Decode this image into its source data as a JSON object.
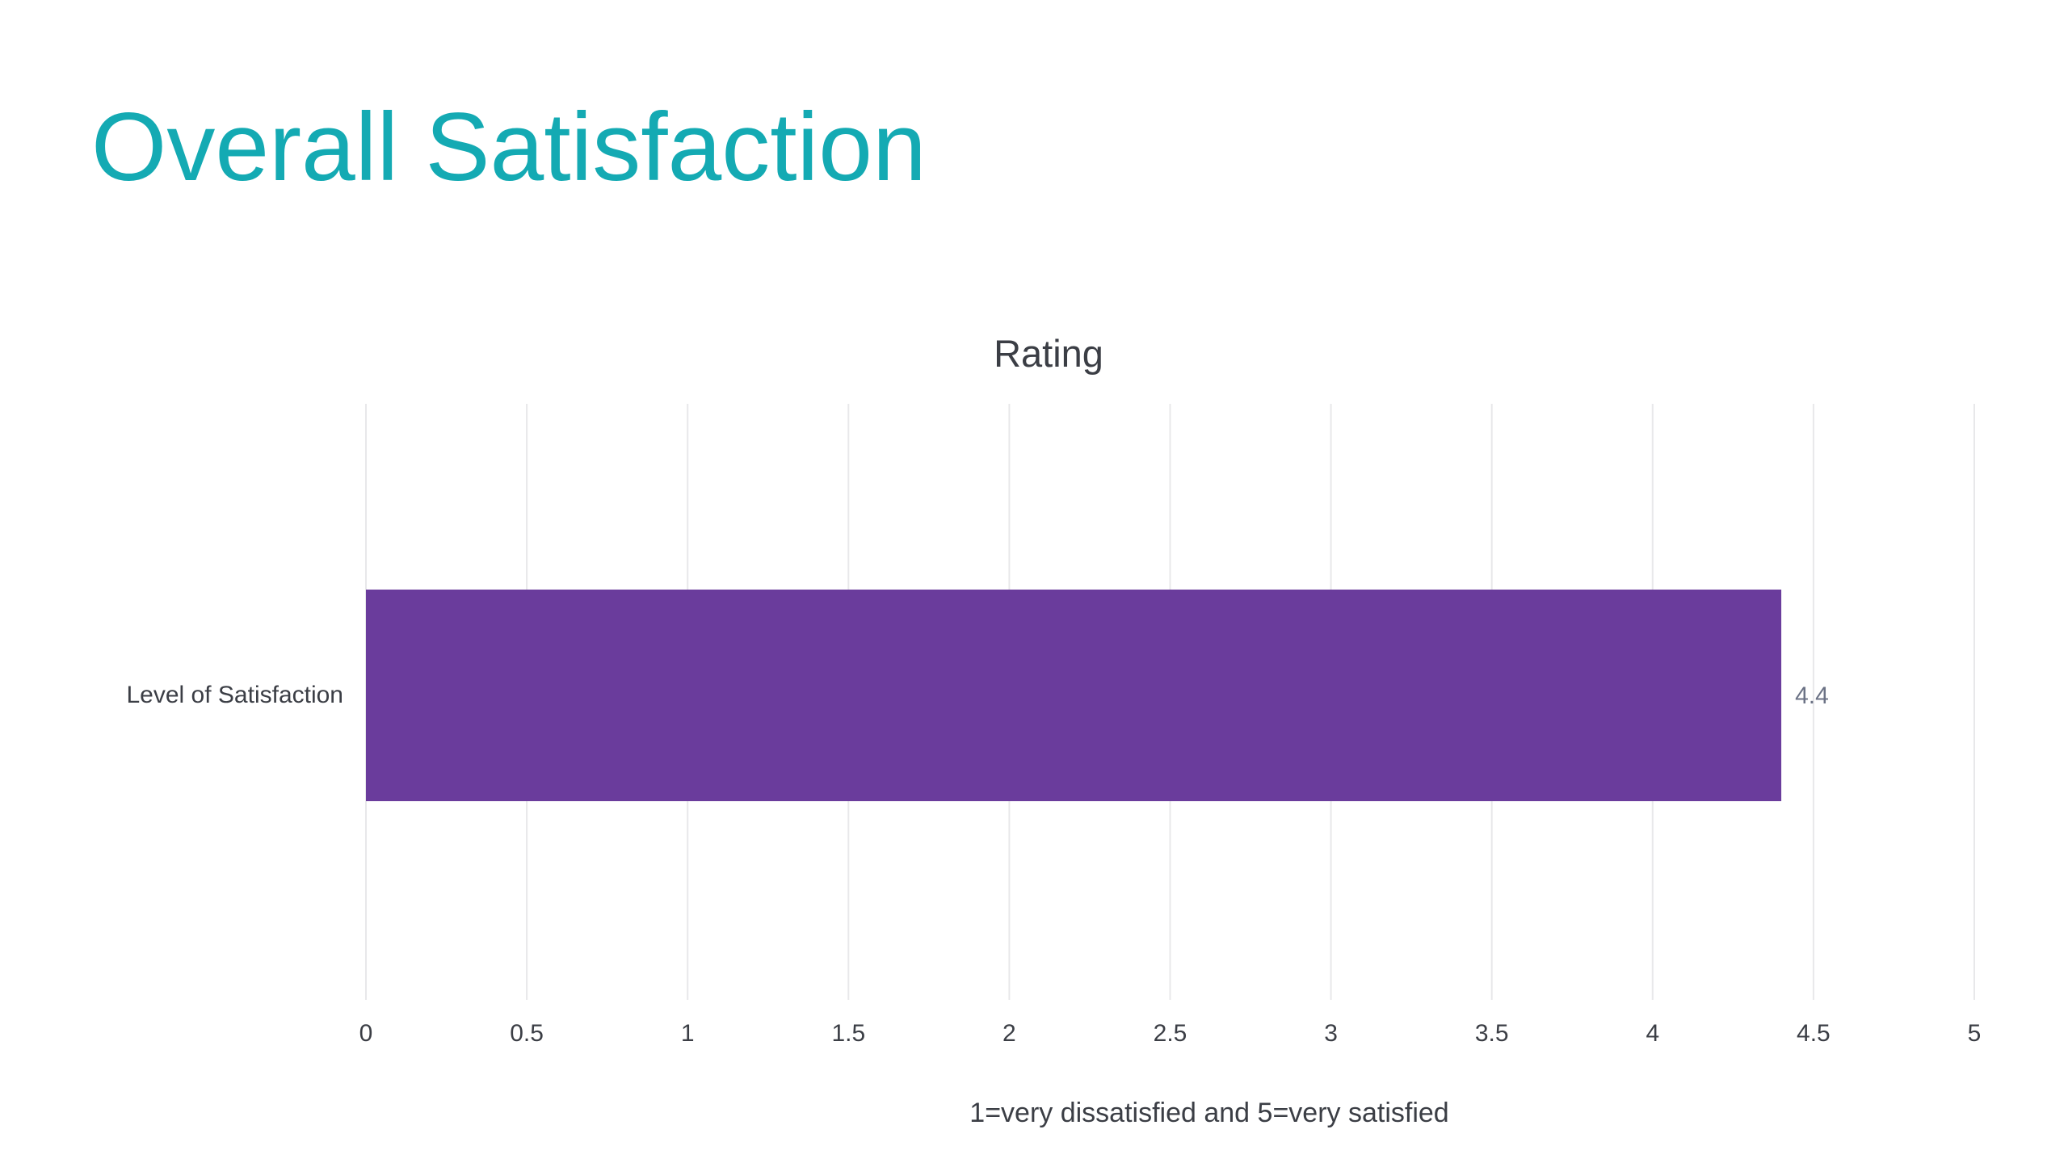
{
  "slide": {
    "title": "Overall Satisfaction"
  },
  "colors": {
    "title": "#14aab3",
    "bar": "#6a3c9c",
    "text": "#3b3e45",
    "data_label": "#6b7285",
    "grid": "#e8e8ea"
  },
  "chart_data": {
    "type": "bar",
    "orientation": "horizontal",
    "title": "Rating",
    "categories": [
      "Level of Satisfaction"
    ],
    "values": [
      4.4
    ],
    "data_labels": [
      "4.4"
    ],
    "xlabel": "1=very dissatisfied and 5=very satisfied",
    "ylabel": "",
    "xlim": [
      0,
      5
    ],
    "xticks": [
      "0",
      "0.5",
      "1",
      "1.5",
      "2",
      "2.5",
      "3",
      "3.5",
      "4",
      "4.5",
      "5"
    ],
    "grid": true,
    "legend": "none"
  }
}
